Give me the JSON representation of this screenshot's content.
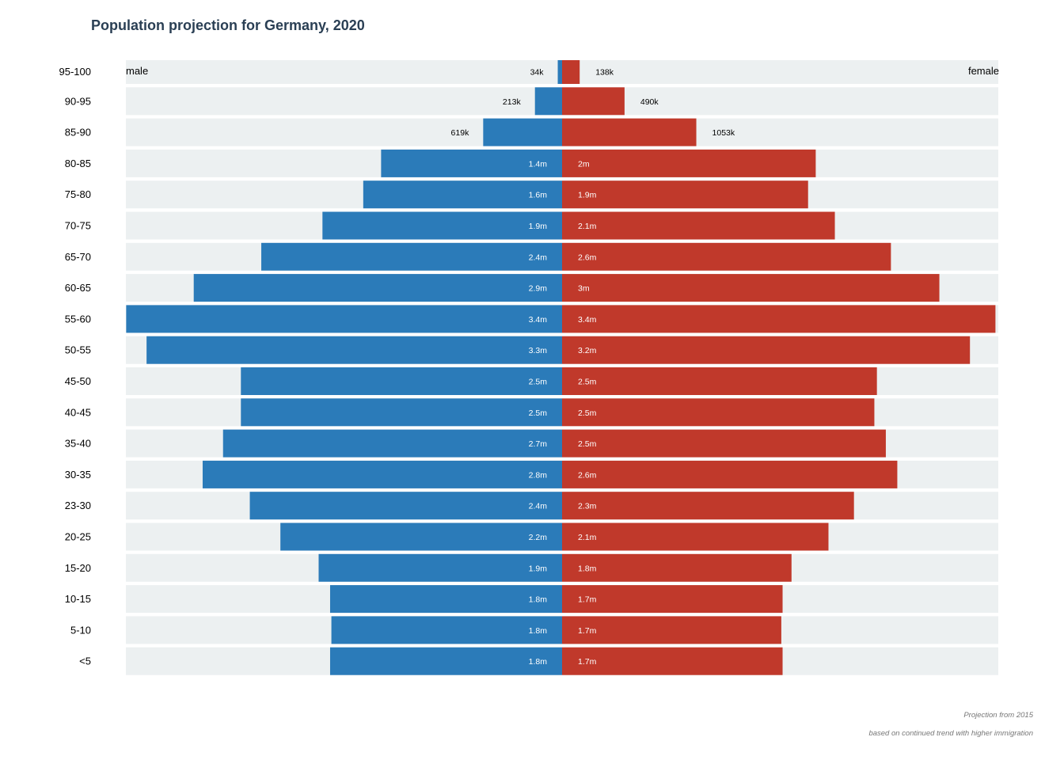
{
  "chart_data": {
    "type": "bar",
    "orientation": "horizontal",
    "layout": "population-pyramid",
    "title": "Population projection for Germany, 2020",
    "notes": [
      "Projection from 2015",
      "based on continued trend with higher immigration"
    ],
    "unit": "millions",
    "categories": [
      "95-100",
      "90-95",
      "85-90",
      "80-85",
      "75-80",
      "70-75",
      "65-70",
      "60-65",
      "55-60",
      "50-55",
      "45-50",
      "40-45",
      "35-40",
      "30-35",
      "23-30",
      "20-25",
      "15-20",
      "10-15",
      "5-10",
      "<5"
    ],
    "xlim": [
      -3.42,
      3.42
    ],
    "grid": false,
    "series": [
      {
        "name": "male",
        "color": "#2b7bb9",
        "values": [
          0.034,
          0.213,
          0.619,
          1.42,
          1.56,
          1.88,
          2.36,
          2.89,
          3.42,
          3.26,
          2.52,
          2.52,
          2.66,
          2.82,
          2.45,
          2.21,
          1.91,
          1.82,
          1.81,
          1.82
        ],
        "labels": [
          "34k",
          "213k",
          "619k",
          "1.4m",
          "1.6m",
          "1.9m",
          "2.4m",
          "2.9m",
          "3.4m",
          "3.3m",
          "2.5m",
          "2.5m",
          "2.7m",
          "2.8m",
          "2.4m",
          "2.2m",
          "1.9m",
          "1.8m",
          "1.8m",
          "1.8m"
        ]
      },
      {
        "name": "female",
        "color": "#c0392b",
        "values": [
          0.138,
          0.49,
          1.053,
          1.99,
          1.93,
          2.14,
          2.58,
          2.96,
          3.4,
          3.2,
          2.47,
          2.45,
          2.54,
          2.63,
          2.29,
          2.09,
          1.8,
          1.73,
          1.72,
          1.73
        ],
        "labels": [
          "138k",
          "490k",
          "1053k",
          "2m",
          "1.9m",
          "2.1m",
          "2.6m",
          "3m",
          "3.4m",
          "3.2m",
          "2.5m",
          "2.5m",
          "2.5m",
          "2.6m",
          "2.3m",
          "2.1m",
          "1.8m",
          "1.7m",
          "1.7m",
          "1.7m"
        ]
      }
    ],
    "band_color": "#ecf0f1"
  }
}
